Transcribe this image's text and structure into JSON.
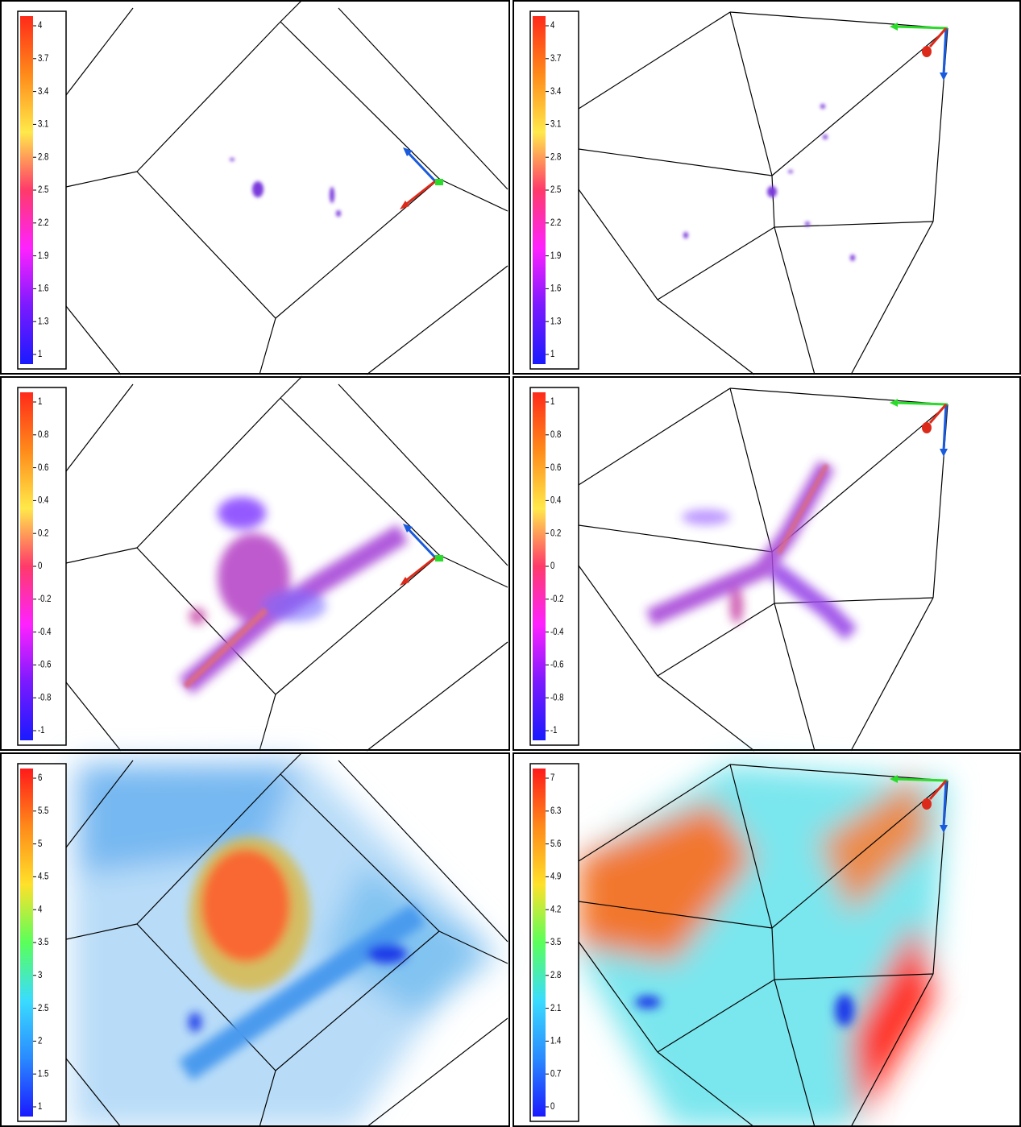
{
  "panels": [
    {
      "colorbar": {
        "clim": [
          1,
          4
        ],
        "ticks": [
          4,
          3.7,
          3.4,
          3.1,
          2.8,
          2.5,
          2.2,
          1.9,
          1.6,
          1.3,
          1
        ],
        "colors": [
          "#1a1aff",
          "#7a1aff",
          "#ff22ff",
          "#ff3a6a",
          "#ffe94a",
          "#ff8a1a",
          "#ff2a1a"
        ]
      }
    },
    {
      "colorbar": {
        "clim": [
          1,
          4
        ],
        "ticks": [
          4,
          3.7,
          3.4,
          3.1,
          2.8,
          2.5,
          2.2,
          1.9,
          1.6,
          1.3,
          1
        ],
        "colors": [
          "#1a1aff",
          "#7a1aff",
          "#ff22ff",
          "#ff3a6a",
          "#ffe94a",
          "#ff8a1a",
          "#ff2a1a"
        ]
      }
    },
    {
      "colorbar": {
        "clim": [
          -1,
          1
        ],
        "ticks": [
          1,
          0.8,
          0.6,
          0.4,
          0.2,
          0,
          -0.2,
          -0.4,
          -0.6,
          -0.8,
          -1
        ],
        "colors": [
          "#1a1aff",
          "#7a1aff",
          "#ff22ff",
          "#ff3a6a",
          "#ffe94a",
          "#ff8a1a",
          "#ff2a1a"
        ]
      }
    },
    {
      "colorbar": {
        "clim": [
          -1,
          1
        ],
        "ticks": [
          1,
          0.8,
          0.6,
          0.4,
          0.2,
          0,
          -0.2,
          -0.4,
          -0.6,
          -0.8,
          -1
        ],
        "colors": [
          "#1a1aff",
          "#7a1aff",
          "#ff22ff",
          "#ff3a6a",
          "#ffe94a",
          "#ff8a1a",
          "#ff2a1a"
        ]
      }
    },
    {
      "colorbar": {
        "clim": [
          1,
          6
        ],
        "ticks": [
          6,
          5.5,
          5,
          4.5,
          4,
          3.5,
          3,
          2.5,
          2,
          1.5,
          1
        ],
        "colors": [
          "#1a1aff",
          "#2a8aff",
          "#3adcff",
          "#5aff5a",
          "#ffe12a",
          "#ff8a1a",
          "#ff1a1a"
        ]
      }
    },
    {
      "colorbar": {
        "clim": [
          0,
          7
        ],
        "ticks": [
          7,
          6.3,
          5.6,
          4.9,
          4.2,
          3.5,
          2.8,
          2.1,
          1.4,
          0.7,
          0
        ],
        "colors": [
          "#1a1aff",
          "#2a8aff",
          "#3adcff",
          "#5aff5a",
          "#ffe12a",
          "#ff8a1a",
          "#ff1a1a"
        ]
      }
    }
  ]
}
